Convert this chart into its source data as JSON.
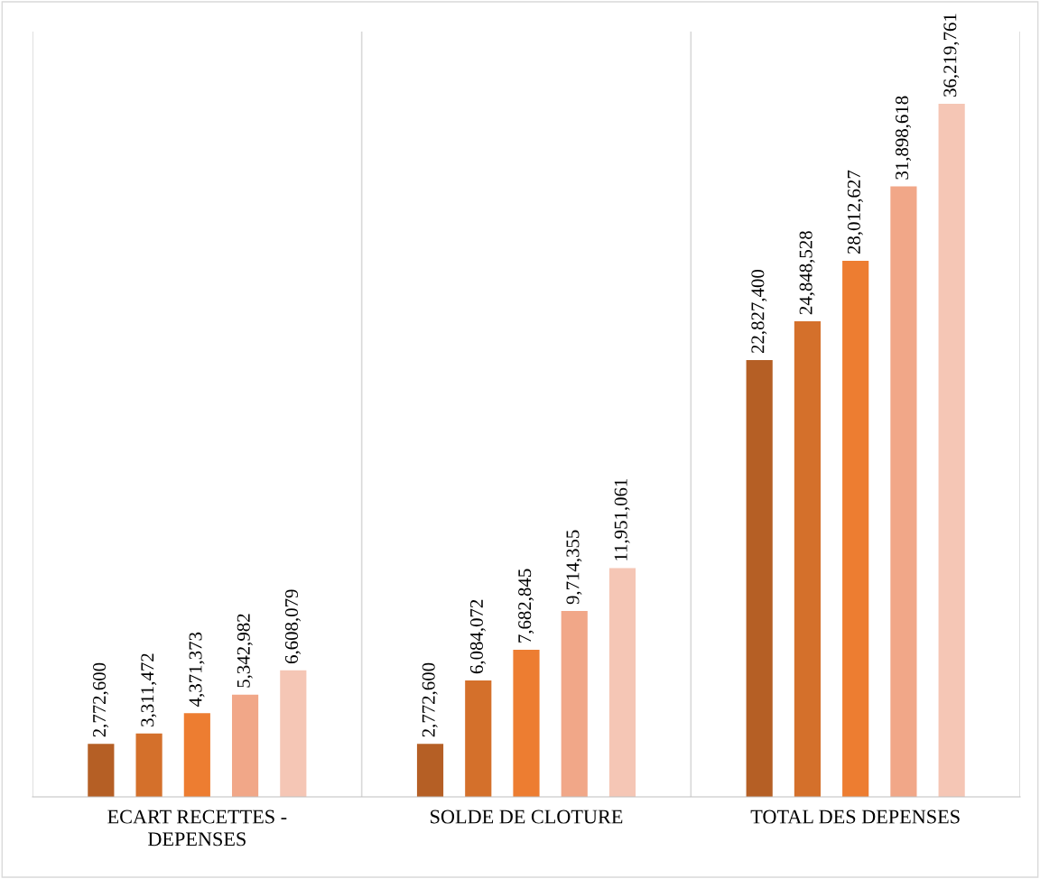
{
  "chart_data": {
    "type": "bar",
    "categories": [
      "ECART RECETTES -\nDEPENSES",
      "SOLDE DE CLOTURE",
      "TOTAL DES DEPENSES"
    ],
    "series": [
      {
        "color": "#b55f25",
        "values": [
          2772600,
          2772600,
          22827400
        ],
        "value_labels": [
          "2,772,600",
          "2,772,600",
          "22,827,400"
        ]
      },
      {
        "color": "#d4702b",
        "values": [
          3311472,
          6084072,
          24848528
        ],
        "value_labels": [
          "3,311,472",
          "6,084,072",
          "24,848,528"
        ]
      },
      {
        "color": "#ed7d31",
        "values": [
          4371373,
          7682845,
          28012627
        ],
        "value_labels": [
          "4,371,373",
          "7,682,845",
          "28,012,627"
        ]
      },
      {
        "color": "#f1a788",
        "values": [
          5342982,
          9714355,
          31898618
        ],
        "value_labels": [
          "5,342,982",
          "9,714,355",
          "31,898,618"
        ]
      },
      {
        "color": "#f5c6b5",
        "values": [
          6608079,
          11951061,
          36219761
        ],
        "value_labels": [
          "6,608,079",
          "11,951,061",
          "36,219,761"
        ]
      }
    ],
    "grid": "x",
    "tick_labels": "x"
  }
}
